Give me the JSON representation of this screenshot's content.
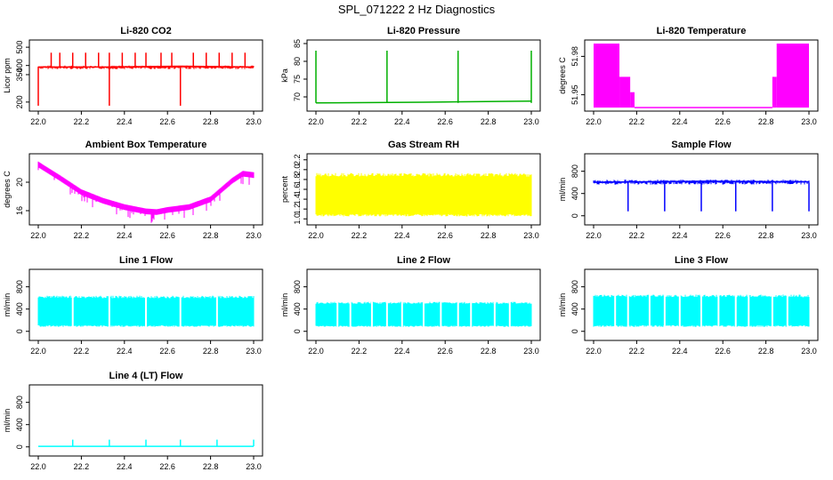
{
  "title": "SPL_071222  2 Hz Diagnostics",
  "chart_data": [
    {
      "type": "line",
      "title": "Li-820 CO2",
      "ylabel": "Licor ppm",
      "color": "#ff0000",
      "x_ticks": [
        "22.0",
        "22.2",
        "22.4",
        "22.6",
        "22.8",
        "23.0"
      ],
      "xlim": [
        22.0,
        23.0
      ],
      "y_ticks": [
        200,
        350,
        400,
        500
      ],
      "y_tick_labels": [
        "200",
        "350",
        "400",
        "500"
      ],
      "ylim": [
        170,
        520
      ],
      "series": [
        {
          "x": [
            22.0,
            22.33,
            22.66,
            23.0
          ],
          "y": [
            392,
            392,
            396,
            392
          ]
        }
      ],
      "band": [
        380,
        400
      ],
      "spikes_up": [
        22.06,
        22.1,
        22.16,
        22.22,
        22.28,
        22.33,
        22.39,
        22.45,
        22.5,
        22.57,
        22.62,
        22.72,
        22.78,
        22.84,
        22.9,
        22.96
      ],
      "spike_up_to": 470,
      "spikes_down": [
        22.0,
        22.33,
        22.66
      ],
      "spike_down_to": 180
    },
    {
      "type": "line",
      "title": "Li-820 Pressure",
      "ylabel": "kPa",
      "color": "#00b000",
      "x_ticks": [
        "22.0",
        "22.2",
        "22.4",
        "22.6",
        "22.8",
        "23.0"
      ],
      "xlim": [
        22.0,
        23.0
      ],
      "y_ticks": [
        70,
        75,
        80,
        85
      ],
      "y_tick_labels": [
        "70",
        "75",
        "80",
        "85"
      ],
      "ylim": [
        67,
        85
      ],
      "series": [
        {
          "x": [
            22.0,
            22.5,
            23.0
          ],
          "y": [
            68.3,
            68.5,
            68.8
          ]
        }
      ],
      "spikes_up": [
        22.0,
        22.33,
        22.66,
        23.0
      ],
      "spike_up_to": 83
    },
    {
      "type": "area",
      "title": "Li-820 Temperature",
      "ylabel": "degrees C",
      "color": "#ff00ff",
      "x_ticks": [
        "22.0",
        "22.2",
        "22.4",
        "22.6",
        "22.8",
        "23.0"
      ],
      "xlim": [
        22.0,
        23.0
      ],
      "y_ticks": [
        51.95,
        51.98
      ],
      "y_tick_labels": [
        "51.95",
        "51.98"
      ],
      "ylim": [
        51.94,
        51.99
      ],
      "fills": [
        {
          "x0": 22.0,
          "x1": 22.12,
          "y0": 51.94,
          "y1": 51.99
        },
        {
          "x0": 22.12,
          "x1": 22.17,
          "y0": 51.94,
          "y1": 51.964
        },
        {
          "x0": 22.17,
          "x1": 22.19,
          "y0": 51.94,
          "y1": 51.952
        },
        {
          "x0": 22.83,
          "x1": 22.85,
          "y0": 51.94,
          "y1": 51.964
        },
        {
          "x0": 22.85,
          "x1": 23.0,
          "y0": 51.94,
          "y1": 51.99
        }
      ],
      "series": [
        {
          "x": [
            22.19,
            22.83
          ],
          "y": [
            51.94,
            51.94
          ]
        }
      ]
    },
    {
      "type": "line",
      "title": "Ambient Box Temperature",
      "ylabel": "degrees C",
      "color": "#ff00ff",
      "x_ticks": [
        "22.0",
        "22.2",
        "22.4",
        "22.6",
        "22.8",
        "23.0"
      ],
      "xlim": [
        22.0,
        23.0
      ],
      "y_ticks": [
        16,
        20
      ],
      "y_tick_labels": [
        "16",
        "20"
      ],
      "ylim": [
        14.5,
        23.5
      ],
      "series": [
        {
          "x": [
            22.0,
            22.1,
            22.2,
            22.3,
            22.4,
            22.5,
            22.55,
            22.6,
            22.7,
            22.8,
            22.9,
            22.95,
            23.0
          ],
          "y": [
            22.5,
            20.6,
            18.6,
            17.4,
            16.5,
            15.9,
            15.8,
            16.1,
            16.5,
            17.6,
            20.2,
            21.2,
            21.0
          ]
        }
      ],
      "band_width": 0.8
    },
    {
      "type": "area",
      "title": "Gas Stream RH",
      "ylabel": "percent",
      "color": "#ffff00",
      "x_ticks": [
        "22.0",
        "22.2",
        "22.4",
        "22.6",
        "22.8",
        "23.0"
      ],
      "xlim": [
        22.0,
        23.0
      ],
      "y_ticks": [
        1.0,
        1.2,
        1.4,
        1.6,
        1.8,
        2.0,
        2.2
      ],
      "y_tick_labels": [
        "1.0",
        "1.2",
        "1.4",
        "1.6",
        "1.8",
        "2.0",
        "2.2"
      ],
      "ylim": [
        0.95,
        2.25
      ],
      "band": [
        1.05,
        1.93
      ]
    },
    {
      "type": "line",
      "title": "Sample Flow",
      "ylabel": "ml/min",
      "color": "#0000ff",
      "x_ticks": [
        "22.0",
        "22.2",
        "22.4",
        "22.6",
        "22.8",
        "23.0"
      ],
      "xlim": [
        22.0,
        23.0
      ],
      "y_ticks": [
        0,
        400,
        800
      ],
      "y_tick_labels": [
        "0",
        "400",
        "800"
      ],
      "ylim": [
        -100,
        1050
      ],
      "series": [
        {
          "x": [
            22.0,
            22.5,
            23.0
          ],
          "y": [
            600,
            620,
            610
          ]
        }
      ],
      "band": [
        560,
        650
      ],
      "spikes_down": [
        22.16,
        22.33,
        22.5,
        22.66,
        22.83,
        23.0
      ],
      "spike_down_to": 80
    },
    {
      "type": "area",
      "title": "Line 1 Flow",
      "ylabel": "ml/min",
      "color": "#00ffff",
      "x_ticks": [
        "22.0",
        "22.2",
        "22.4",
        "22.6",
        "22.8",
        "23.0"
      ],
      "xlim": [
        22.0,
        23.0
      ],
      "y_ticks": [
        0,
        400,
        800
      ],
      "y_tick_labels": [
        "0",
        "400",
        "800"
      ],
      "ylim": [
        -100,
        1050
      ],
      "band": [
        80,
        640
      ],
      "gaps": [
        22.16,
        22.33,
        22.5,
        22.66,
        22.83
      ]
    },
    {
      "type": "area",
      "title": "Line 2 Flow",
      "ylabel": "ml/min",
      "color": "#00ffff",
      "x_ticks": [
        "22.0",
        "22.2",
        "22.4",
        "22.6",
        "22.8",
        "23.0"
      ],
      "xlim": [
        22.0,
        23.0
      ],
      "y_ticks": [
        0,
        400,
        800
      ],
      "y_tick_labels": [
        "0",
        "400",
        "800"
      ],
      "ylim": [
        -100,
        1050
      ],
      "band": [
        80,
        530
      ],
      "gaps": [
        22.16,
        22.33,
        22.5,
        22.66,
        22.83,
        22.1,
        22.26,
        22.4,
        22.58,
        22.72,
        22.9
      ]
    },
    {
      "type": "area",
      "title": "Line 3 Flow",
      "ylabel": "ml/min",
      "color": "#00ffff",
      "x_ticks": [
        "22.0",
        "22.2",
        "22.4",
        "22.6",
        "22.8",
        "23.0"
      ],
      "xlim": [
        22.0,
        23.0
      ],
      "y_ticks": [
        0,
        400,
        800
      ],
      "y_tick_labels": [
        "0",
        "400",
        "800"
      ],
      "ylim": [
        -100,
        1050
      ],
      "band": [
        80,
        660
      ],
      "gaps": [
        22.16,
        22.33,
        22.5,
        22.66,
        22.83,
        22.1,
        22.26,
        22.4,
        22.58,
        22.72,
        22.9
      ]
    },
    {
      "type": "line",
      "title": "Line 4 (LT) Flow",
      "ylabel": "ml/min",
      "color": "#00ffff",
      "x_ticks": [
        "22.0",
        "22.2",
        "22.4",
        "22.6",
        "22.8",
        "23.0"
      ],
      "xlim": [
        22.0,
        23.0
      ],
      "y_ticks": [
        0,
        400,
        800
      ],
      "y_tick_labels": [
        "0",
        "400",
        "800"
      ],
      "ylim": [
        -100,
        1050
      ],
      "series": [
        {
          "x": [
            22.0,
            23.0
          ],
          "y": [
            10,
            10
          ]
        }
      ],
      "spikes_up": [
        22.16,
        22.33,
        22.5,
        22.66,
        22.83,
        23.0
      ],
      "spike_up_to": 130
    }
  ]
}
